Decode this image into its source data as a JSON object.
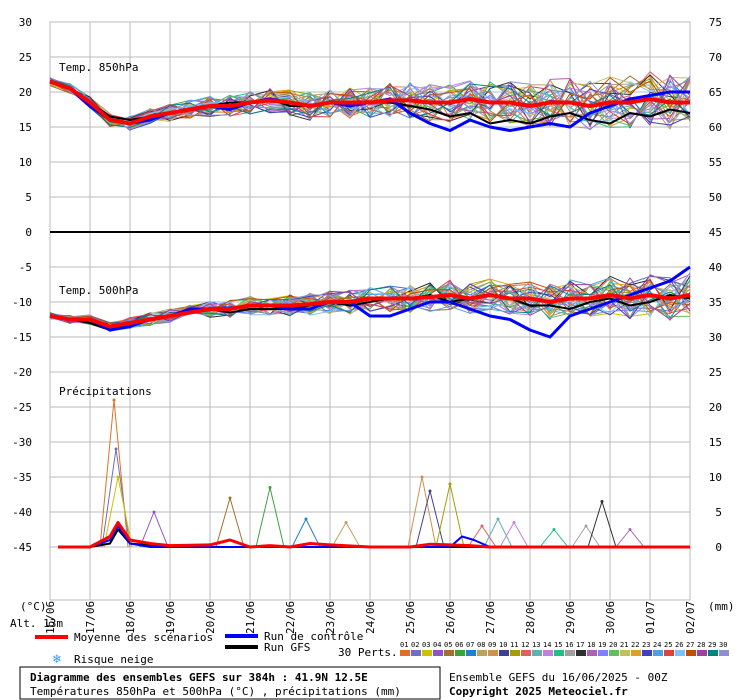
{
  "chart_data": {
    "type": "line",
    "title": "Diagramme des ensembles GEFS sur 384h : 41.9N 12.5E",
    "subtitle": "Températures 850hPa et 500hPa (°C) , précipitations (mm)",
    "run_info": "Ensemble GEFS du 16/06/2025 - 00Z",
    "copyright": "Copyright 2025 Meteociel.fr",
    "altitude": "Alt. 13m",
    "left_unit": "(°C)",
    "right_unit": "(mm)",
    "left_ticks": [
      "30",
      "25",
      "20",
      "15",
      "10",
      "5",
      "0",
      "-5",
      "-10",
      "-15",
      "-20",
      "-25",
      "-30",
      "-35",
      "-40",
      "-45"
    ],
    "right_ticks": [
      "75",
      "70",
      "65",
      "60",
      "55",
      "50",
      "45",
      "40",
      "35",
      "30",
      "25",
      "20",
      "15",
      "10",
      "5",
      "0"
    ],
    "x_labels": [
      "16/06",
      "17/06",
      "18/06",
      "19/06",
      "20/06",
      "21/06",
      "22/06",
      "23/06",
      "24/06",
      "25/06",
      "26/06",
      "27/06",
      "28/06",
      "29/06",
      "30/06",
      "01/07",
      "02/07"
    ],
    "panel_labels": [
      "Temp. 850hPa",
      "Temp. 500hPa",
      "Précipitations"
    ],
    "legend": {
      "mean": "Moyenne des scénarios",
      "control": "Run de contrôle",
      "gfs": "Run GFS",
      "snow": "Risque neige",
      "perts_label": "30 Perts.",
      "perts": [
        "01",
        "02",
        "03",
        "04",
        "05",
        "06",
        "07",
        "08",
        "09",
        "10",
        "11",
        "12",
        "13",
        "14",
        "15",
        "16",
        "17",
        "18",
        "19",
        "20",
        "21",
        "22",
        "23",
        "24",
        "25",
        "26",
        "27",
        "28",
        "29",
        "30"
      ]
    },
    "colors": {
      "mean": "#ff0000",
      "control": "#0000ff",
      "gfs": "#000000",
      "grid": "#bbbbbb",
      "snow": "#3399ff",
      "perts": [
        "#e07020",
        "#7070c0",
        "#d0c000",
        "#9050d0",
        "#a07030",
        "#40a040",
        "#2080d0",
        "#c0a060",
        "#d09050",
        "#404090",
        "#a0a000",
        "#e06060",
        "#60b0b0",
        "#c080e0",
        "#20c080",
        "#a0a0a0",
        "#303030",
        "#b060b0",
        "#8080ff",
        "#60c060",
        "#c0c060",
        "#e0a020",
        "#4040c0",
        "#50a0e0",
        "#e04040",
        "#80c0ff",
        "#c05000",
        "#a040a0",
        "#008080",
        "#9090d0"
      ]
    },
    "x_days": [
      16,
      17,
      18,
      19,
      20,
      21,
      22,
      23,
      24,
      25,
      26,
      27,
      28,
      29,
      30,
      31,
      32
    ],
    "t850": {
      "mean": [
        [
          16,
          21.5
        ],
        [
          16.5,
          20.5
        ],
        [
          17,
          18.5
        ],
        [
          17.5,
          16
        ],
        [
          18,
          15.5
        ],
        [
          18.5,
          16.5
        ],
        [
          19,
          17
        ],
        [
          19.5,
          17.5
        ],
        [
          20,
          18
        ],
        [
          20.5,
          18
        ],
        [
          21,
          18.5
        ],
        [
          21.5,
          18.8
        ],
        [
          22,
          18.5
        ],
        [
          22.5,
          18
        ],
        [
          23,
          18.5
        ],
        [
          23.5,
          18.5
        ],
        [
          24,
          18.5
        ],
        [
          24.5,
          18.8
        ],
        [
          25,
          18.8
        ],
        [
          25.5,
          18.5
        ],
        [
          26,
          18.5
        ],
        [
          26.5,
          19
        ],
        [
          27,
          18.5
        ],
        [
          27.5,
          18.5
        ],
        [
          28,
          18
        ],
        [
          28.5,
          18.5
        ],
        [
          29,
          18.5
        ],
        [
          29.5,
          18
        ],
        [
          30,
          18.5
        ],
        [
          30.5,
          18.5
        ],
        [
          31,
          19
        ],
        [
          31.5,
          18.5
        ],
        [
          32,
          18.5
        ]
      ],
      "control": [
        [
          16,
          21.5
        ],
        [
          16.5,
          20.5
        ],
        [
          17,
          18
        ],
        [
          17.5,
          16
        ],
        [
          18,
          15.5
        ],
        [
          18.5,
          16
        ],
        [
          19,
          17
        ],
        [
          19.5,
          17.5
        ],
        [
          20,
          18
        ],
        [
          20.5,
          17.5
        ],
        [
          21,
          18.5
        ],
        [
          21.5,
          19
        ],
        [
          22,
          18.5
        ],
        [
          22.5,
          18
        ],
        [
          23,
          18.5
        ],
        [
          23.5,
          18
        ],
        [
          24,
          18.5
        ],
        [
          24.5,
          19
        ],
        [
          25,
          17
        ],
        [
          25.5,
          15.5
        ],
        [
          26,
          14.5
        ],
        [
          26.5,
          16
        ],
        [
          27,
          15
        ],
        [
          27.5,
          14.5
        ],
        [
          28,
          15
        ],
        [
          28.5,
          15.5
        ],
        [
          29,
          15
        ],
        [
          29.5,
          17
        ],
        [
          30,
          18
        ],
        [
          30.5,
          19
        ],
        [
          31,
          19.5
        ],
        [
          31.5,
          20
        ],
        [
          32,
          20
        ]
      ],
      "gfs": [
        [
          16,
          21.5
        ],
        [
          16.5,
          20.5
        ],
        [
          17,
          18.5
        ],
        [
          17.5,
          16.5
        ],
        [
          18,
          16
        ],
        [
          18.5,
          16.5
        ],
        [
          19,
          17
        ],
        [
          19.5,
          17.5
        ],
        [
          20,
          18
        ],
        [
          20.5,
          18.5
        ],
        [
          21,
          18.5
        ],
        [
          21.5,
          19
        ],
        [
          22,
          18
        ],
        [
          22.5,
          18
        ],
        [
          23,
          18.5
        ],
        [
          23.5,
          18
        ],
        [
          24,
          18.5
        ],
        [
          24.5,
          18.5
        ],
        [
          25,
          18
        ],
        [
          25.5,
          17.5
        ],
        [
          26,
          16.5
        ],
        [
          26.5,
          17
        ],
        [
          27,
          15.5
        ],
        [
          27.5,
          16
        ],
        [
          28,
          15.5
        ],
        [
          28.5,
          16.5
        ],
        [
          29,
          17
        ],
        [
          29.5,
          16
        ],
        [
          30,
          15.5
        ],
        [
          30.5,
          17
        ],
        [
          31,
          16.5
        ],
        [
          31.5,
          17.5
        ],
        [
          32,
          17
        ]
      ]
    },
    "t500": {
      "mean": [
        [
          16,
          -12
        ],
        [
          16.5,
          -12.5
        ],
        [
          17,
          -12.5
        ],
        [
          17.5,
          -13.5
        ],
        [
          18,
          -13
        ],
        [
          18.5,
          -12.5
        ],
        [
          19,
          -12
        ],
        [
          19.5,
          -11.5
        ],
        [
          20,
          -11
        ],
        [
          20.5,
          -11
        ],
        [
          21,
          -10.5
        ],
        [
          21.5,
          -10.5
        ],
        [
          22,
          -10.5
        ],
        [
          22.5,
          -10.3
        ],
        [
          23,
          -10
        ],
        [
          23.5,
          -10
        ],
        [
          24,
          -9.5
        ],
        [
          24.5,
          -9.5
        ],
        [
          25,
          -9.5
        ],
        [
          25.5,
          -9.3
        ],
        [
          26,
          -9
        ],
        [
          26.5,
          -9.5
        ],
        [
          27,
          -9
        ],
        [
          27.5,
          -9.5
        ],
        [
          28,
          -9.5
        ],
        [
          28.5,
          -10
        ],
        [
          29,
          -9.5
        ],
        [
          29.5,
          -9.5
        ],
        [
          30,
          -9
        ],
        [
          30.5,
          -9.5
        ],
        [
          31,
          -9
        ],
        [
          31.5,
          -9.5
        ],
        [
          32,
          -9
        ]
      ],
      "control": [
        [
          16,
          -12
        ],
        [
          16.5,
          -12.5
        ],
        [
          17,
          -12.5
        ],
        [
          17.5,
          -14
        ],
        [
          18,
          -13.5
        ],
        [
          18.5,
          -12.5
        ],
        [
          19,
          -12
        ],
        [
          19.5,
          -11
        ],
        [
          20,
          -11
        ],
        [
          20.5,
          -11
        ],
        [
          21,
          -10.5
        ],
        [
          21.5,
          -10.5
        ],
        [
          22,
          -11
        ],
        [
          22.5,
          -11
        ],
        [
          23,
          -10
        ],
        [
          23.5,
          -10
        ],
        [
          24,
          -12
        ],
        [
          24.5,
          -12
        ],
        [
          25,
          -11
        ],
        [
          25.5,
          -10
        ],
        [
          26,
          -10
        ],
        [
          26.5,
          -11
        ],
        [
          27,
          -12
        ],
        [
          27.5,
          -12.5
        ],
        [
          28,
          -14
        ],
        [
          28.5,
          -15
        ],
        [
          29,
          -12
        ],
        [
          29.5,
          -11
        ],
        [
          30,
          -10
        ],
        [
          30.5,
          -9
        ],
        [
          31,
          -8
        ],
        [
          31.5,
          -7
        ],
        [
          32,
          -5
        ]
      ],
      "gfs": [
        [
          16,
          -12
        ],
        [
          16.5,
          -12.5
        ],
        [
          17,
          -13
        ],
        [
          17.5,
          -14
        ],
        [
          18,
          -13
        ],
        [
          18.5,
          -12.5
        ],
        [
          19,
          -12
        ],
        [
          19.5,
          -11.5
        ],
        [
          20,
          -11
        ],
        [
          20.5,
          -11.5
        ],
        [
          21,
          -11
        ],
        [
          21.5,
          -11
        ],
        [
          22,
          -11
        ],
        [
          22.5,
          -10.5
        ],
        [
          23,
          -10
        ],
        [
          23.5,
          -10.5
        ],
        [
          24,
          -10
        ],
        [
          24.5,
          -9.5
        ],
        [
          25,
          -9.5
        ],
        [
          25.5,
          -9
        ],
        [
          26,
          -10
        ],
        [
          26.5,
          -9.5
        ],
        [
          27,
          -9
        ],
        [
          27.5,
          -9.5
        ],
        [
          28,
          -10.5
        ],
        [
          28.5,
          -10.5
        ],
        [
          29,
          -11
        ],
        [
          29.5,
          -10
        ],
        [
          30,
          -9.5
        ],
        [
          30.5,
          -10.5
        ],
        [
          31,
          -10
        ],
        [
          31.5,
          -9
        ],
        [
          32,
          -9.5
        ]
      ]
    },
    "precip": {
      "mean": [
        [
          16.2,
          0
        ],
        [
          17,
          0
        ],
        [
          17.5,
          1.5
        ],
        [
          17.7,
          3.5
        ],
        [
          18,
          1
        ],
        [
          18.5,
          0.5
        ],
        [
          19,
          0.2
        ],
        [
          20,
          0.3
        ],
        [
          20.5,
          1
        ],
        [
          21,
          0
        ],
        [
          21.5,
          0.2
        ],
        [
          22,
          0
        ],
        [
          22.5,
          0.5
        ],
        [
          23,
          0.3
        ],
        [
          24,
          0
        ],
        [
          25,
          0
        ],
        [
          25.5,
          0.4
        ],
        [
          26,
          0.3
        ],
        [
          26.5,
          0.2
        ],
        [
          27,
          0
        ],
        [
          28,
          0
        ],
        [
          29,
          0
        ],
        [
          30,
          0
        ],
        [
          31,
          0
        ],
        [
          32,
          0
        ]
      ],
      "control": [
        [
          16.2,
          0
        ],
        [
          17,
          0
        ],
        [
          17.5,
          1
        ],
        [
          17.7,
          3
        ],
        [
          18,
          0.5
        ],
        [
          18.5,
          0
        ],
        [
          19,
          0
        ],
        [
          20,
          0
        ],
        [
          21,
          0
        ],
        [
          22,
          0
        ],
        [
          23,
          0
        ],
        [
          24,
          0
        ],
        [
          25,
          0
        ],
        [
          25.5,
          0
        ],
        [
          26,
          0
        ],
        [
          26.3,
          1.5
        ],
        [
          26.6,
          1
        ],
        [
          27,
          0
        ],
        [
          28,
          0
        ],
        [
          29,
          0
        ],
        [
          30,
          0
        ],
        [
          31,
          0
        ],
        [
          32,
          0
        ]
      ],
      "gfs": [
        [
          16.2,
          0
        ],
        [
          17,
          0
        ],
        [
          17.5,
          0.5
        ],
        [
          17.7,
          2.5
        ],
        [
          18,
          0.5
        ],
        [
          19,
          0
        ],
        [
          20,
          0
        ],
        [
          21,
          0
        ],
        [
          22,
          0
        ],
        [
          23,
          0
        ],
        [
          24,
          0
        ],
        [
          25,
          0
        ],
        [
          26,
          0
        ],
        [
          27,
          0
        ],
        [
          28,
          0
        ],
        [
          29,
          0
        ],
        [
          30,
          0
        ],
        [
          31,
          0
        ],
        [
          32,
          0
        ]
      ],
      "spikes": [
        [
          17.6,
          21
        ],
        [
          17.65,
          14
        ],
        [
          17.7,
          10
        ],
        [
          18.6,
          5
        ],
        [
          20.5,
          7
        ],
        [
          21.5,
          8.5
        ],
        [
          22.4,
          4
        ],
        [
          23.4,
          3.5
        ],
        [
          25.3,
          10
        ],
        [
          25.5,
          8
        ],
        [
          26.0,
          9
        ],
        [
          26.8,
          3
        ],
        [
          27.2,
          4
        ],
        [
          27.6,
          3.5
        ],
        [
          28.6,
          2.5
        ],
        [
          29.4,
          3
        ],
        [
          29.8,
          6.5
        ],
        [
          30.5,
          2.5
        ]
      ]
    }
  }
}
